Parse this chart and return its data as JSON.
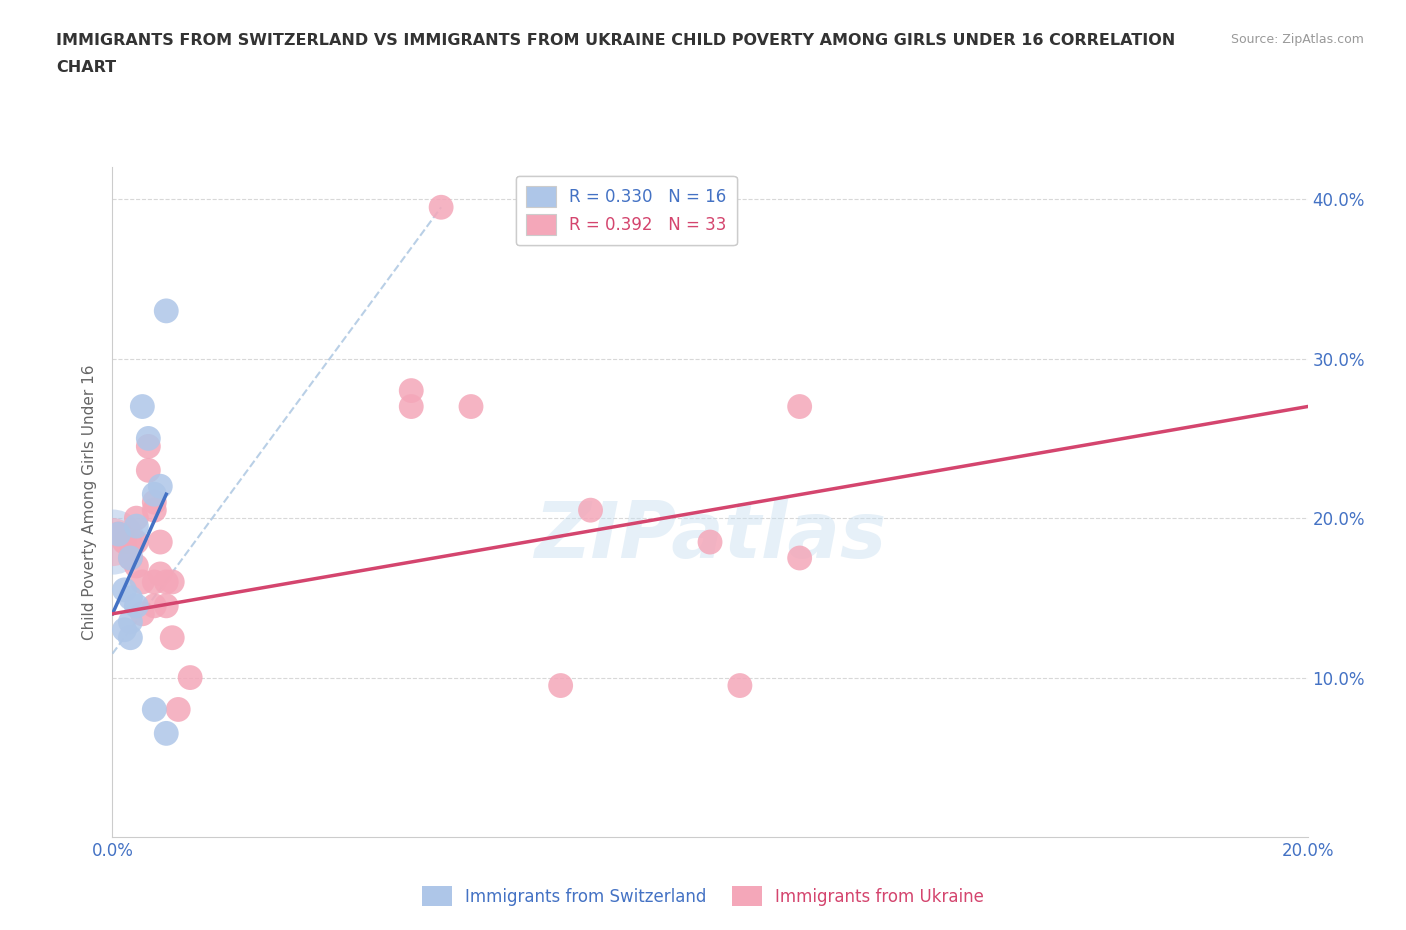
{
  "title_line1": "IMMIGRANTS FROM SWITZERLAND VS IMMIGRANTS FROM UKRAINE CHILD POVERTY AMONG GIRLS UNDER 16 CORRELATION",
  "title_line2": "CHART",
  "ylabel": "Child Poverty Among Girls Under 16",
  "source": "Source: ZipAtlas.com",
  "watermark": "ZIPatlas",
  "xlim": [
    0.0,
    0.2
  ],
  "ylim": [
    0.0,
    0.42
  ],
  "xticks": [
    0.0,
    0.05,
    0.1,
    0.15,
    0.2
  ],
  "yticks": [
    0.0,
    0.1,
    0.2,
    0.3,
    0.4
  ],
  "legend_entries": [
    {
      "label": "R = 0.330   N = 16",
      "color": "#aec6e8"
    },
    {
      "label": "R = 0.392   N = 33",
      "color": "#f4a7b9"
    }
  ],
  "bottom_legend": [
    "Immigrants from Switzerland",
    "Immigrants from Ukraine"
  ],
  "switzerland_color": "#aec6e8",
  "ukraine_color": "#f4a7b9",
  "switzerland_line_color": "#4472c4",
  "ukraine_line_color": "#d4456e",
  "trendline_dash_color": "#a8c4e0",
  "switzerland_points": [
    [
      0.001,
      0.19
    ],
    [
      0.002,
      0.155
    ],
    [
      0.002,
      0.13
    ],
    [
      0.003,
      0.175
    ],
    [
      0.003,
      0.15
    ],
    [
      0.003,
      0.135
    ],
    [
      0.003,
      0.125
    ],
    [
      0.004,
      0.195
    ],
    [
      0.004,
      0.145
    ],
    [
      0.005,
      0.27
    ],
    [
      0.006,
      0.25
    ],
    [
      0.007,
      0.215
    ],
    [
      0.007,
      0.08
    ],
    [
      0.008,
      0.22
    ],
    [
      0.009,
      0.33
    ],
    [
      0.009,
      0.065
    ]
  ],
  "ukraine_points": [
    [
      0.001,
      0.19
    ],
    [
      0.002,
      0.185
    ],
    [
      0.003,
      0.185
    ],
    [
      0.003,
      0.175
    ],
    [
      0.004,
      0.2
    ],
    [
      0.004,
      0.185
    ],
    [
      0.004,
      0.17
    ],
    [
      0.005,
      0.16
    ],
    [
      0.005,
      0.14
    ],
    [
      0.006,
      0.245
    ],
    [
      0.006,
      0.23
    ],
    [
      0.007,
      0.21
    ],
    [
      0.007,
      0.205
    ],
    [
      0.007,
      0.16
    ],
    [
      0.007,
      0.145
    ],
    [
      0.008,
      0.185
    ],
    [
      0.008,
      0.165
    ],
    [
      0.009,
      0.16
    ],
    [
      0.009,
      0.145
    ],
    [
      0.01,
      0.16
    ],
    [
      0.01,
      0.125
    ],
    [
      0.011,
      0.08
    ],
    [
      0.013,
      0.1
    ],
    [
      0.05,
      0.28
    ],
    [
      0.05,
      0.27
    ],
    [
      0.055,
      0.395
    ],
    [
      0.06,
      0.27
    ],
    [
      0.075,
      0.095
    ],
    [
      0.08,
      0.205
    ],
    [
      0.1,
      0.185
    ],
    [
      0.105,
      0.095
    ],
    [
      0.115,
      0.27
    ],
    [
      0.115,
      0.175
    ]
  ],
  "switzerland_trendline": [
    [
      0.0,
      0.14
    ],
    [
      0.009,
      0.215
    ]
  ],
  "ukraine_trendline": [
    [
      0.0,
      0.14
    ],
    [
      0.2,
      0.27
    ]
  ],
  "dashed_trendline": [
    [
      0.0,
      0.115
    ],
    [
      0.055,
      0.395
    ]
  ],
  "bg_color": "#ffffff",
  "grid_color": "#d8d8d8",
  "title_color": "#333333",
  "axis_color": "#4472c4"
}
